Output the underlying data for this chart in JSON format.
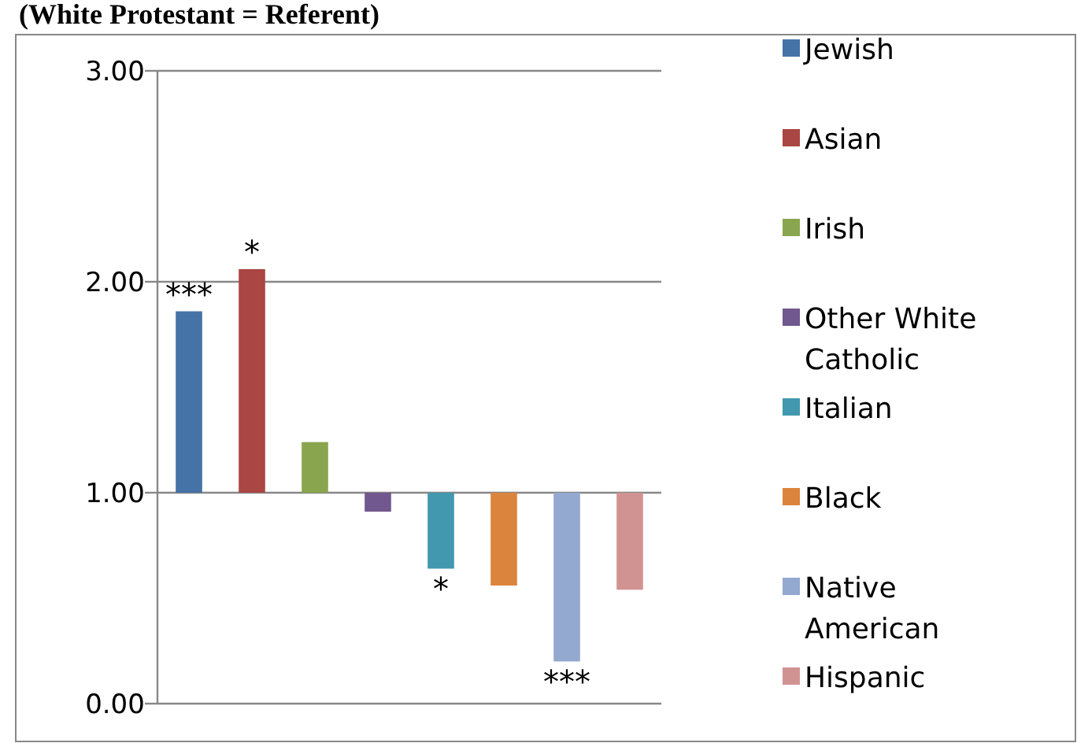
{
  "chart_data": {
    "type": "bar",
    "title": "(White Protestant = Referent)",
    "categories": [
      null
    ],
    "series": [
      {
        "name": "Jewish",
        "color": "#4572a7",
        "values": [
          0.86
        ],
        "base": [
          1
        ]
      },
      {
        "name": "Asian",
        "color": "#aa4643",
        "values": [
          1.06
        ],
        "base": [
          1
        ]
      },
      {
        "name": "Irish",
        "color": "#89a54e",
        "values": [
          0.24
        ],
        "base": [
          1
        ]
      },
      {
        "name": "Other White Catholic",
        "color": "#71588f",
        "values": [
          -0.09
        ],
        "base": [
          1
        ]
      },
      {
        "name": "Italian",
        "color": "#4198af",
        "values": [
          -0.36
        ],
        "base": [
          1
        ]
      },
      {
        "name": "Black",
        "color": "#db843d",
        "values": [
          -0.44
        ],
        "base": [
          1
        ]
      },
      {
        "name": "Native American",
        "color": "#93a9cf",
        "values": [
          -0.8
        ],
        "base": [
          1
        ]
      },
      {
        "name": "Hispanic",
        "color": "#d19392",
        "values": [
          -0.46
        ],
        "base": [
          1
        ]
      }
    ],
    "ylim": [
      0,
      3
    ],
    "yticks": [
      {
        "value": 0,
        "label": "0.00"
      },
      {
        "value": 1,
        "label": "1.00"
      },
      {
        "value": 2,
        "label": "2.00"
      },
      {
        "value": 3,
        "label": "3.00"
      }
    ],
    "grid": "y",
    "legend": "right",
    "tick_labels": "y",
    "annotations": [
      {
        "text": "***",
        "y": 1.86
      },
      {
        "text": "*",
        "y": 2.06
      },
      {
        "text": "*",
        "y": 0.64
      },
      {
        "text": "***",
        "y": 0.2
      }
    ]
  }
}
